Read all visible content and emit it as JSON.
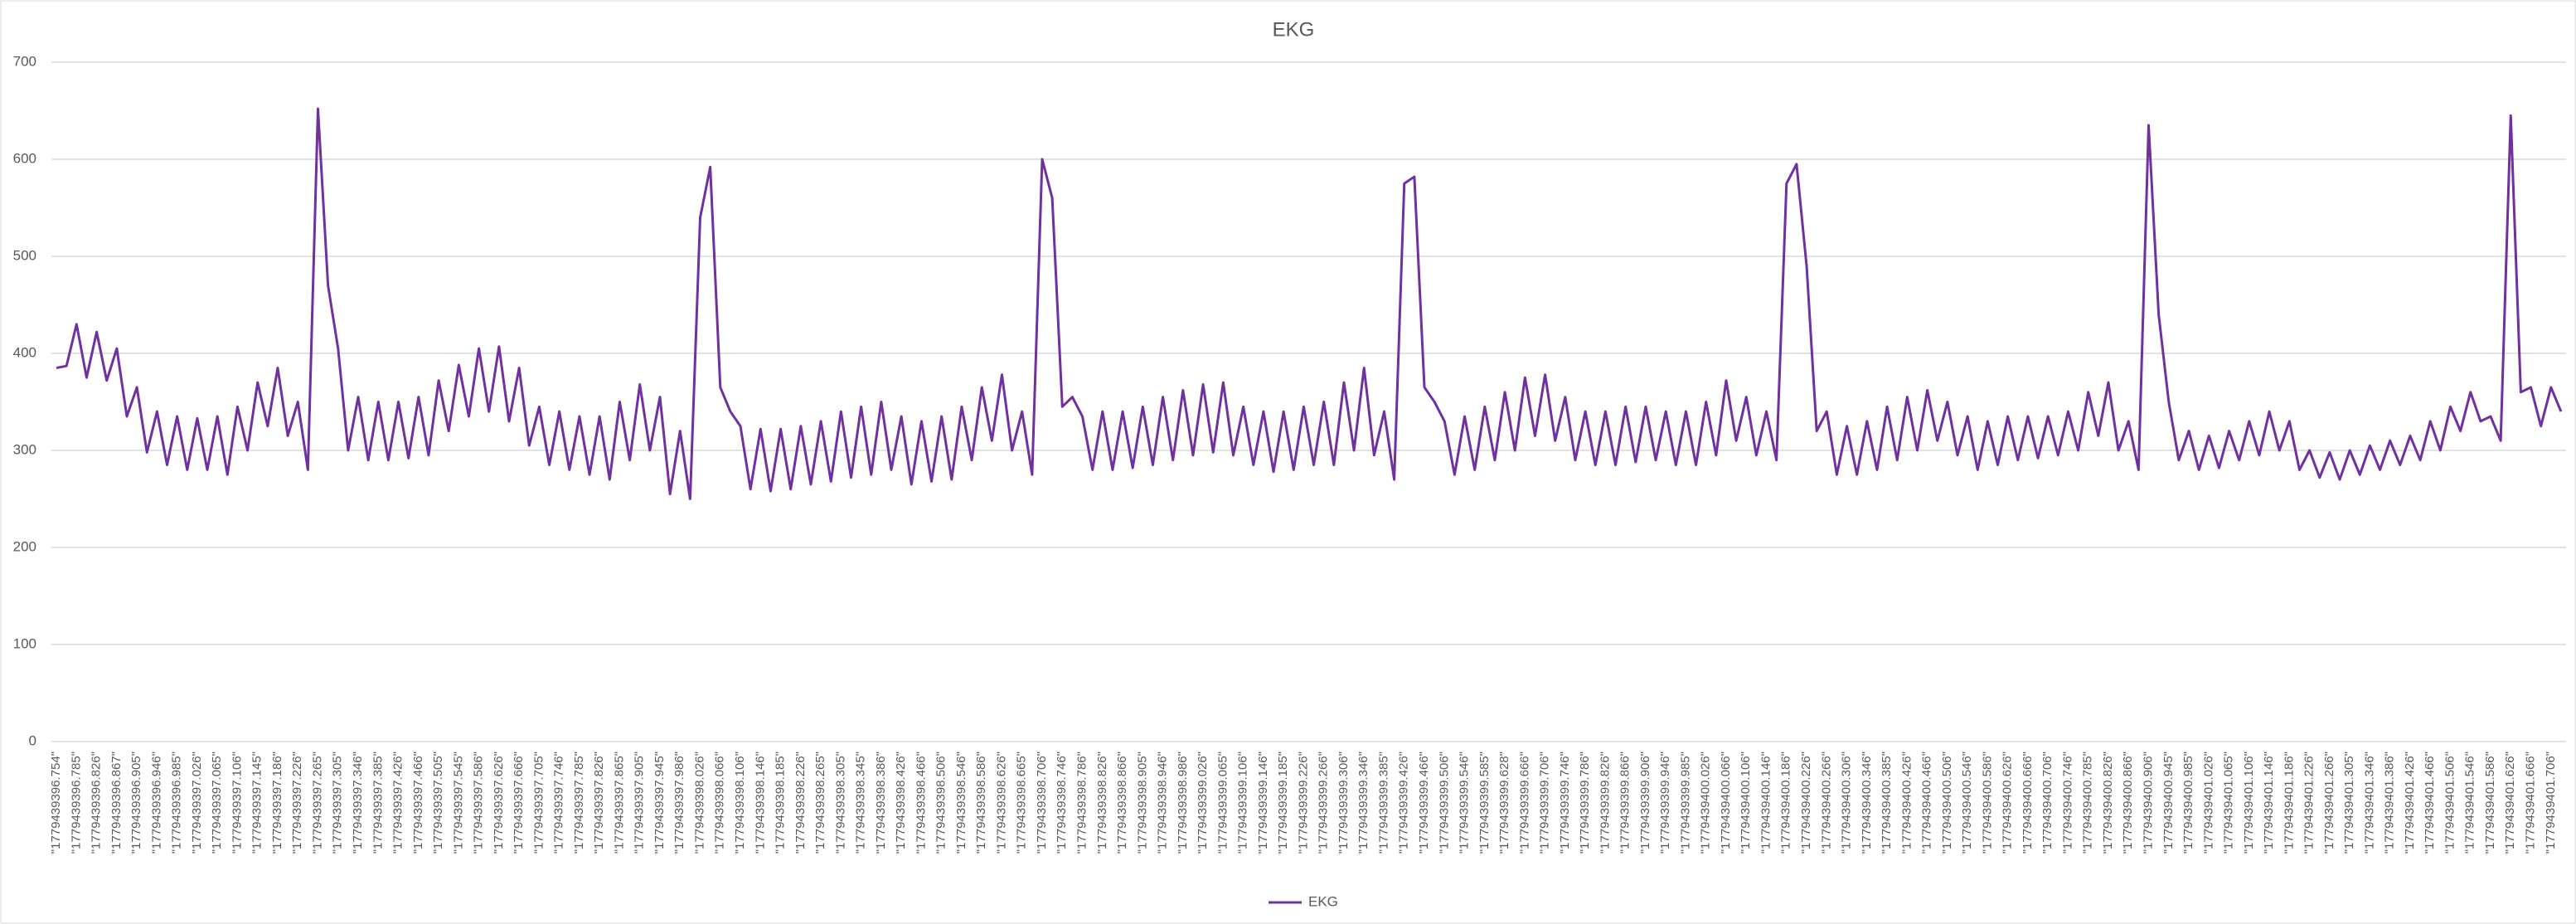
{
  "chart_data": {
    "type": "line",
    "title": "EKG",
    "categories": [
      "\"1779439396.754\"",
      null,
      "\"1779439396.785\"",
      null,
      "\"1779439396.826\"",
      null,
      "\"1779439396.867\"",
      null,
      "\"1779439396.905\"",
      null,
      "\"1779439396.946\"",
      null,
      "\"1779439396.985\"",
      null,
      "\"1779439397.026\"",
      null,
      "\"1779439397.065\"",
      null,
      "\"1779439397.106\"",
      null,
      "\"1779439397.145\"",
      null,
      "\"1779439397.186\"",
      null,
      "\"1779439397.226\"",
      null,
      "\"1779439397.265\"",
      null,
      "\"1779439397.305\"",
      null,
      "\"1779439397.346\"",
      null,
      "\"1779439397.385\"",
      null,
      "\"1779439397.426\"",
      null,
      "\"1779439397.466\"",
      null,
      "\"1779439397.505\"",
      null,
      "\"1779439397.545\"",
      null,
      "\"1779439397.586\"",
      null,
      "\"1779439397.626\"",
      null,
      "\"1779439397.666\"",
      null,
      "\"1779439397.705\"",
      null,
      "\"1779439397.746\"",
      null,
      "\"1779439397.785\"",
      null,
      "\"1779439397.826\"",
      null,
      "\"1779439397.865\"",
      null,
      "\"1779439397.905\"",
      null,
      "\"1779439397.945\"",
      null,
      "\"1779439397.986\"",
      null,
      "\"1779439398.026\"",
      null,
      "\"1779439398.066\"",
      null,
      "\"1779439398.106\"",
      null,
      "\"1779439398.146\"",
      null,
      "\"1779439398.185\"",
      null,
      "\"1779439398.226\"",
      null,
      "\"1779439398.265\"",
      null,
      "\"1779439398.305\"",
      null,
      "\"1779439398.345\"",
      null,
      "\"1779439398.386\"",
      null,
      "\"1779439398.426\"",
      null,
      "\"1779439398.466\"",
      null,
      "\"1779439398.506\"",
      null,
      "\"1779439398.546\"",
      null,
      "\"1779439398.586\"",
      null,
      "\"1779439398.626\"",
      null,
      "\"1779439398.665\"",
      null,
      "\"1779439398.706\"",
      null,
      "\"1779439398.746\"",
      null,
      "\"1779439398.786\"",
      null,
      "\"1779439398.826\"",
      null,
      "\"1779439398.866\"",
      null,
      "\"1779439398.905\"",
      null,
      "\"1779439398.946\"",
      null,
      "\"1779439398.986\"",
      null,
      "\"1779439399.026\"",
      null,
      "\"1779439399.065\"",
      null,
      "\"1779439399.106\"",
      null,
      "\"1779439399.146\"",
      null,
      "\"1779439399.185\"",
      null,
      "\"1779439399.226\"",
      null,
      "\"1779439399.266\"",
      null,
      "\"1779439399.306\"",
      null,
      "\"1779439399.346\"",
      null,
      "\"1779439399.385\"",
      null,
      "\"1779439399.426\"",
      null,
      "\"1779439399.466\"",
      null,
      "\"1779439399.506\"",
      null,
      "\"1779439399.546\"",
      null,
      "\"1779439399.585\"",
      null,
      "\"1779439399.628\"",
      null,
      "\"1779439399.666\"",
      null,
      "\"1779439399.706\"",
      null,
      "\"1779439399.746\"",
      null,
      "\"1779439399.786\"",
      null,
      "\"1779439399.826\"",
      null,
      "\"1779439399.866\"",
      null,
      "\"1779439399.906\"",
      null,
      "\"1779439399.946\"",
      null,
      "\"1779439399.985\"",
      null,
      "\"1779439400.026\"",
      null,
      "\"1779439400.066\"",
      null,
      "\"1779439400.106\"",
      null,
      "\"1779439400.146\"",
      null,
      "\"1779439400.186\"",
      null,
      "\"1779439400.226\"",
      null,
      "\"1779439400.266\"",
      null,
      "\"1779439400.306\"",
      null,
      "\"1779439400.346\"",
      null,
      "\"1779439400.385\"",
      null,
      "\"1779439400.426\"",
      null,
      "\"1779439400.466\"",
      null,
      "\"1779439400.506\"",
      null,
      "\"1779439400.546\"",
      null,
      "\"1779439400.586\"",
      null,
      "\"1779439400.626\"",
      null,
      "\"1779439400.666\"",
      null,
      "\"1779439400.706\"",
      null,
      "\"1779439400.746\"",
      null,
      "\"1779439400.785\"",
      null,
      "\"1779439400.826\"",
      null,
      "\"1779439400.866\"",
      null,
      "\"1779439400.906\"",
      null,
      "\"1779439400.945\"",
      null,
      "\"1779439400.985\"",
      null,
      "\"1779439401.026\"",
      null,
      "\"1779439401.065\"",
      null,
      "\"1779439401.106\"",
      null,
      "\"1779439401.146\"",
      null,
      "\"1779439401.186\"",
      null,
      "\"1779439401.226\"",
      null,
      "\"1779439401.266\"",
      null,
      "\"1779439401.305\"",
      null,
      "\"1779439401.346\"",
      null,
      "\"1779439401.386\"",
      null,
      "\"1779439401.426\"",
      null,
      "\"1779439401.466\"",
      null,
      "\"1779439401.506\"",
      null,
      "\"1779439401.546\"",
      null,
      "\"1779439401.586\"",
      null,
      "\"1779439401.626\"",
      null,
      "\"1779439401.666\"",
      null,
      "\"1779439401.706\"",
      null
    ],
    "series": [
      {
        "name": "EKG",
        "color": "#7030a0",
        "values": [
          385,
          387,
          430,
          375,
          422,
          372,
          405,
          335,
          365,
          298,
          340,
          285,
          335,
          280,
          333,
          280,
          335,
          275,
          345,
          300,
          370,
          325,
          385,
          315,
          350,
          280,
          652,
          470,
          405,
          300,
          355,
          290,
          350,
          290,
          350,
          292,
          355,
          295,
          372,
          320,
          388,
          335,
          405,
          340,
          407,
          330,
          385,
          305,
          345,
          285,
          340,
          280,
          335,
          275,
          335,
          270,
          350,
          290,
          368,
          300,
          355,
          255,
          320,
          250,
          540,
          592,
          365,
          340,
          325,
          260,
          322,
          258,
          322,
          260,
          325,
          265,
          330,
          268,
          340,
          272,
          345,
          275,
          350,
          280,
          335,
          265,
          330,
          268,
          335,
          270,
          345,
          290,
          365,
          310,
          378,
          300,
          340,
          275,
          600,
          560,
          345,
          355,
          335,
          280,
          340,
          280,
          340,
          282,
          345,
          285,
          355,
          290,
          362,
          295,
          368,
          298,
          370,
          295,
          345,
          285,
          340,
          278,
          340,
          280,
          345,
          285,
          350,
          285,
          370,
          300,
          385,
          295,
          340,
          270,
          575,
          582,
          365,
          350,
          330,
          275,
          335,
          280,
          345,
          290,
          360,
          300,
          375,
          315,
          378,
          310,
          355,
          290,
          340,
          285,
          340,
          285,
          345,
          288,
          345,
          290,
          340,
          285,
          340,
          285,
          350,
          295,
          372,
          310,
          355,
          295,
          340,
          290,
          575,
          595,
          490,
          320,
          340,
          275,
          325,
          275,
          330,
          280,
          345,
          290,
          355,
          300,
          362,
          310,
          350,
          295,
          335,
          280,
          330,
          285,
          335,
          290,
          335,
          292,
          335,
          295,
          340,
          300,
          360,
          315,
          370,
          300,
          330,
          280,
          635,
          440,
          350,
          290,
          320,
          280,
          315,
          282,
          320,
          290,
          330,
          295,
          340,
          300,
          330,
          280,
          300,
          272,
          298,
          270,
          300,
          275,
          305,
          280,
          310,
          285,
          315,
          290,
          330,
          300,
          345,
          320,
          360,
          330,
          335,
          310,
          645,
          360,
          365,
          325,
          365,
          340
        ]
      }
    ],
    "ylim": [
      0,
      700
    ],
    "yticks": [
      0,
      100,
      200,
      300,
      400,
      500,
      600,
      700
    ],
    "grid": true,
    "legend": "bottom"
  }
}
